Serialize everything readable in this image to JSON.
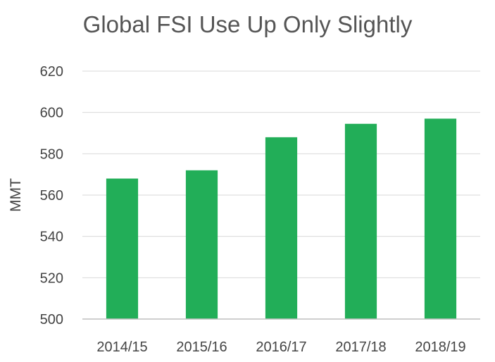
{
  "chart_data": {
    "type": "bar",
    "title": "Global FSI Use Up Only Slightly",
    "xlabel": "",
    "ylabel": "MMT",
    "categories": [
      "2014/15",
      "2015/16",
      "2016/17",
      "2017/18",
      "2018/19"
    ],
    "values": [
      568,
      572,
      588,
      594.5,
      597
    ],
    "ylim": [
      500,
      620
    ],
    "yticks": [
      500,
      520,
      540,
      560,
      580,
      600,
      620
    ],
    "grid": true,
    "legend": "none",
    "bar_color": "#22ae58",
    "grid_color": "#d9d9d9",
    "axis_color": "#bfbfbf"
  }
}
